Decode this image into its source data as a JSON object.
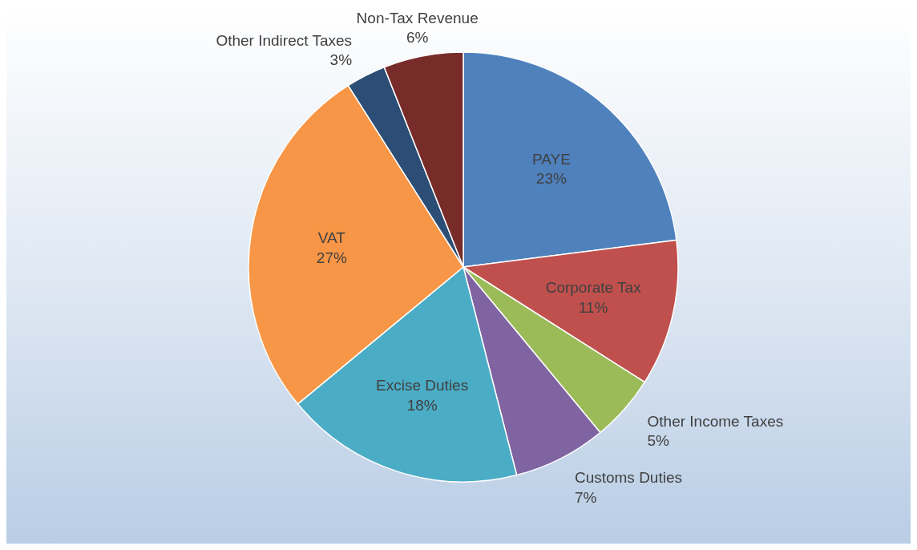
{
  "chart_data": {
    "type": "pie",
    "categories": [
      "PAYE",
      "Corporate Tax",
      "Other Income Taxes",
      "Customs Duties",
      "Excise Duties",
      "VAT",
      "Other Indirect Taxes",
      "Non-Tax Revenue"
    ],
    "values": [
      23,
      11,
      5,
      7,
      18,
      27,
      3,
      6
    ],
    "value_labels": [
      "23%",
      "11%",
      "5%",
      "7%",
      "18%",
      "27%",
      "3%",
      "6%"
    ],
    "colors": [
      "#4f81bd",
      "#c0504d",
      "#9bbb59",
      "#8064a2",
      "#4bacc6",
      "#f79646",
      "#2c4d75",
      "#772c2a"
    ],
    "legend": false
  }
}
